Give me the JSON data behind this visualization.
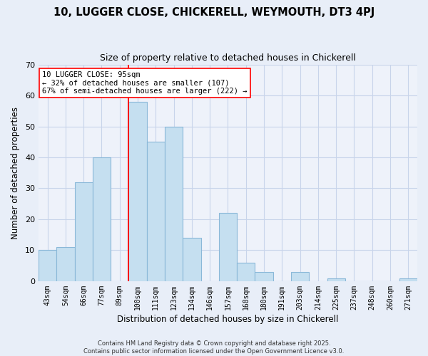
{
  "title": "10, LUGGER CLOSE, CHICKERELL, WEYMOUTH, DT3 4PJ",
  "subtitle": "Size of property relative to detached houses in Chickerell",
  "xlabel": "Distribution of detached houses by size in Chickerell",
  "ylabel": "Number of detached properties",
  "categories": [
    "43sqm",
    "54sqm",
    "66sqm",
    "77sqm",
    "89sqm",
    "100sqm",
    "111sqm",
    "123sqm",
    "134sqm",
    "146sqm",
    "157sqm",
    "168sqm",
    "180sqm",
    "191sqm",
    "203sqm",
    "214sqm",
    "225sqm",
    "237sqm",
    "248sqm",
    "260sqm",
    "271sqm"
  ],
  "values": [
    10,
    11,
    32,
    40,
    0,
    58,
    45,
    50,
    14,
    0,
    22,
    6,
    3,
    0,
    3,
    0,
    1,
    0,
    0,
    0,
    1
  ],
  "bar_color": "#c5dff0",
  "bar_edge_color": "#8ab8d8",
  "ylim": [
    0,
    70
  ],
  "yticks": [
    0,
    10,
    20,
    30,
    40,
    50,
    60,
    70
  ],
  "property_line_idx": 5,
  "property_line_label": "10 LUGGER CLOSE: 95sqm",
  "annotation_line1": "← 32% of detached houses are smaller (107)",
  "annotation_line2": "67% of semi-detached houses are larger (222) →",
  "footer1": "Contains HM Land Registry data © Crown copyright and database right 2025.",
  "footer2": "Contains public sector information licensed under the Open Government Licence v3.0.",
  "background_color": "#e8eef8",
  "plot_bg_color": "#eef2fa",
  "grid_color": "#c8d4ea"
}
